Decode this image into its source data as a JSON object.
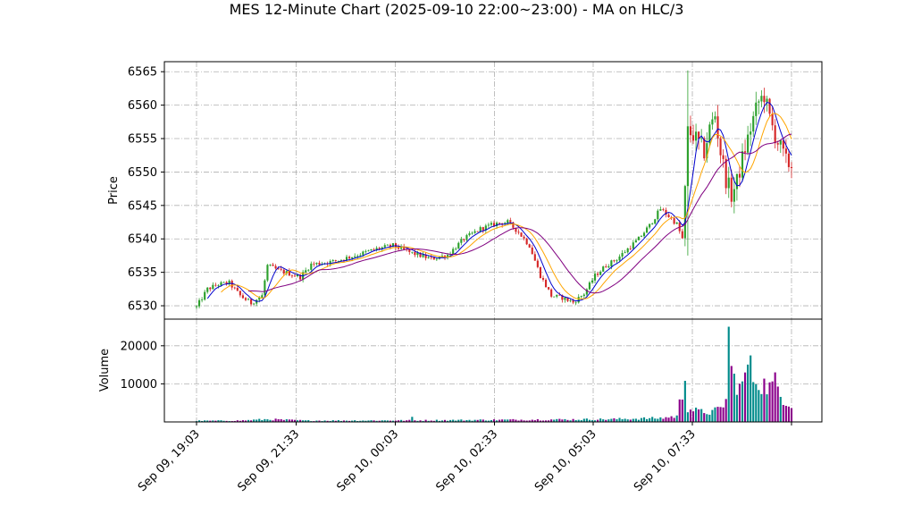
{
  "chart_data": {
    "type": "candlestick",
    "title": "MES 12-Minute Chart (2025-09-10 22:00~23:00) - MA on HLC/3",
    "price_panel": {
      "ylabel": "Price",
      "ylim": [
        6528,
        6566.5
      ],
      "yticks": [
        6530,
        6535,
        6540,
        6545,
        6550,
        6555,
        6560,
        6565
      ],
      "grid": true
    },
    "volume_panel": {
      "ylabel": "Volume",
      "ylim": [
        0,
        27000
      ],
      "yticks": [
        10000,
        20000
      ],
      "grid": true
    },
    "x_axis": {
      "tick_labels": [
        "Sep 09, 19:03",
        "Sep 09, 21:33",
        "Sep 10, 00:03",
        "Sep 10, 02:33",
        "Sep 10, 05:03",
        "Sep 10, 07:33"
      ],
      "tick_rotation": 45
    },
    "colors": {
      "up_candle": "#2ca02c",
      "down_candle": "#d62728",
      "volume_up": "#008b8b",
      "volume_down": "#8b008b",
      "ma_fast": "#0000cd",
      "ma_mid": "#ffa500",
      "ma_slow": "#800080",
      "grid": "#b0b0b0"
    },
    "price_anchors": [
      [
        0,
        6529.8
      ],
      [
        4,
        6532.5
      ],
      [
        8,
        6533.2
      ],
      [
        12,
        6533.4
      ],
      [
        16,
        6531.5
      ],
      [
        20,
        6530.4
      ],
      [
        24,
        6531.5
      ],
      [
        26,
        6536.0
      ],
      [
        30,
        6535.3
      ],
      [
        34,
        6534.8
      ],
      [
        38,
        6534.3
      ],
      [
        42,
        6536.2
      ],
      [
        50,
        6536.6
      ],
      [
        58,
        6537.5
      ],
      [
        66,
        6538.5
      ],
      [
        72,
        6539.0
      ],
      [
        78,
        6538.0
      ],
      [
        86,
        6537.0
      ],
      [
        92,
        6537.6
      ],
      [
        98,
        6540.0
      ],
      [
        104,
        6541.5
      ],
      [
        110,
        6542.3
      ],
      [
        114,
        6542.5
      ],
      [
        118,
        6541.0
      ],
      [
        122,
        6539.0
      ],
      [
        126,
        6534.5
      ],
      [
        130,
        6531.5
      ],
      [
        134,
        6531.2
      ],
      [
        138,
        6530.5
      ],
      [
        142,
        6531.8
      ],
      [
        146,
        6534.5
      ],
      [
        150,
        6536.0
      ],
      [
        154,
        6537.0
      ],
      [
        158,
        6538.5
      ],
      [
        162,
        6540.0
      ],
      [
        166,
        6542.0
      ],
      [
        170,
        6544.5
      ],
      [
        174,
        6543.0
      ],
      [
        176,
        6542.2
      ],
      [
        178,
        6540.0
      ],
      [
        179,
        6547.0
      ],
      [
        180,
        6556.0
      ],
      [
        182,
        6555.5
      ],
      [
        186,
        6553.0
      ],
      [
        188,
        6556.5
      ],
      [
        190,
        6558.5
      ],
      [
        192,
        6553.0
      ],
      [
        194,
        6549.0
      ],
      [
        196,
        6546.5
      ],
      [
        198,
        6548.5
      ],
      [
        200,
        6552.0
      ],
      [
        202,
        6555.0
      ],
      [
        204,
        6558.0
      ],
      [
        206,
        6560.5
      ],
      [
        208,
        6561.5
      ],
      [
        210,
        6558.0
      ],
      [
        212,
        6555.5
      ],
      [
        214,
        6553.5
      ],
      [
        216,
        6551.5
      ],
      [
        218,
        6551.0
      ]
    ],
    "volume_anchors": [
      [
        0,
        300
      ],
      [
        16,
        350
      ],
      [
        26,
        700
      ],
      [
        40,
        350
      ],
      [
        78,
        400
      ],
      [
        79,
        1300
      ],
      [
        80,
        400
      ],
      [
        100,
        500
      ],
      [
        126,
        600
      ],
      [
        150,
        700
      ],
      [
        170,
        1000
      ],
      [
        176,
        1500
      ],
      [
        179,
        10800
      ],
      [
        180,
        3500
      ],
      [
        184,
        2800
      ],
      [
        188,
        2400
      ],
      [
        192,
        3600
      ],
      [
        194,
        5500
      ],
      [
        195,
        25000
      ],
      [
        196,
        12800
      ],
      [
        198,
        10000
      ],
      [
        200,
        9000
      ],
      [
        202,
        15800
      ],
      [
        204,
        12000
      ],
      [
        206,
        10500
      ],
      [
        210,
        9000
      ],
      [
        212,
        10400
      ],
      [
        214,
        7000
      ],
      [
        216,
        5500
      ],
      [
        218,
        4500
      ]
    ]
  }
}
